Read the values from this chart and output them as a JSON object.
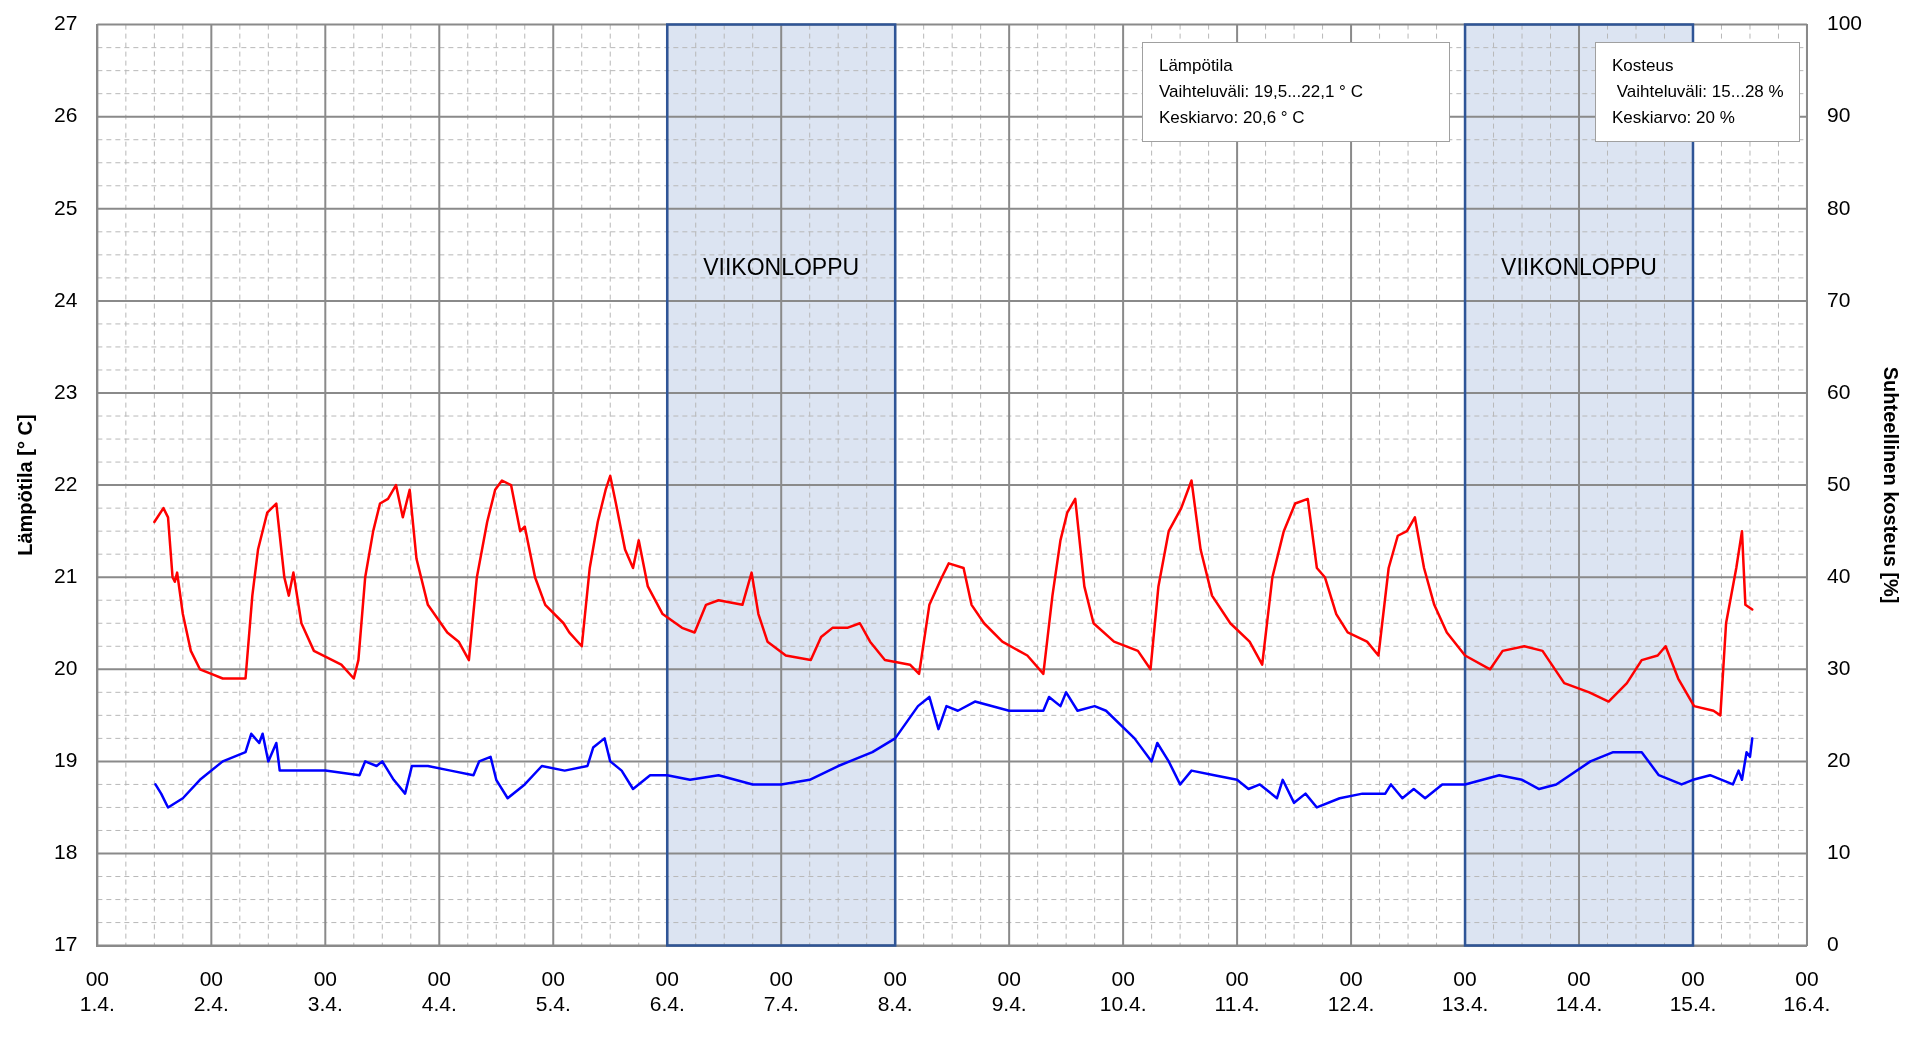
{
  "chart_data": {
    "type": "line",
    "ylabel": "Lämpötila [° C]",
    "y2label": "Suhteellinen kosteus [%]",
    "xlim": [
      "--04-01",
      "--04-16"
    ],
    "xticks": [
      {
        "value": "--04-01",
        "label": "00\n1.4."
      },
      {
        "value": "--04-02",
        "label": "00\n2.4."
      },
      {
        "value": "--04-03",
        "label": "00\n3.4."
      },
      {
        "value": "--04-04",
        "label": "00\n4.4."
      },
      {
        "value": "--04-05",
        "label": "00\n5.4."
      },
      {
        "value": "--04-06",
        "label": "00\n6.4."
      },
      {
        "value": "--04-07",
        "label": "00\n7.4."
      },
      {
        "value": "--04-08",
        "label": "00\n8.4."
      },
      {
        "value": "--04-09",
        "label": "00\n9.4."
      },
      {
        "value": "--04-10",
        "label": "00\n10.4."
      },
      {
        "value": "--04-11",
        "label": "00\n11.4."
      },
      {
        "value": "--04-12",
        "label": "00\n12.4."
      },
      {
        "value": "--04-13",
        "label": "00\n13.4."
      },
      {
        "value": "--04-14",
        "label": "00\n14.4."
      },
      {
        "value": "--04-15",
        "label": "00\n15.4."
      },
      {
        "value": "--04-16",
        "label": "00\n16.4."
      }
    ],
    "ylim": [
      17,
      27
    ],
    "yticks": [
      17,
      18,
      19,
      20,
      21,
      22,
      23,
      24,
      25,
      26,
      27
    ],
    "y2lim": [
      0,
      100
    ],
    "y2ticks": [
      0,
      10,
      20,
      30,
      40,
      50,
      60,
      70,
      80,
      90,
      100
    ],
    "grid": true,
    "marker": "none",
    "line_style": "solid",
    "series": [
      {
        "color": "#ff0000",
        "x": [
          "--04-01T12:00",
          "--04-01T13:55",
          "--04-01T14:53",
          "--04-01T15:50",
          "--04-01T16:19",
          "--04-01T16:48",
          "--04-01T18:00",
          "--04-01T19:41",
          "--04-01T21:36",
          "--04-02T00:00",
          "--04-02T02:24",
          "--04-02T04:48",
          "--04-02T07:12",
          "--04-02T08:38",
          "--04-02T09:50",
          "--04-02T11:46",
          "--04-02T12:43",
          "--04-02T13:41",
          "--04-02T15:22",
          "--04-02T16:19",
          "--04-02T17:17",
          "--04-02T18:58",
          "--04-02T21:36",
          "--04-03T03:22",
          "--04-03T06:00",
          "--04-03T06:58",
          "--04-03T08:24",
          "--04-03T10:05",
          "--04-03T11:31",
          "--04-03T13:12",
          "--04-03T14:53",
          "--04-03T16:19",
          "--04-03T17:46",
          "--04-03T19:12",
          "--04-03T21:36",
          "--04-04T01:41",
          "--04-04T04:05",
          "--04-04T06:14",
          "--04-04T07:55",
          "--04-04T10:05",
          "--04-04T11:46",
          "--04-04T13:12",
          "--04-04T15:07",
          "--04-04T17:02",
          "--04-04T18:00",
          "--04-04T20:10",
          "--04-04T22:19",
          "--04-05T02:10",
          "--04-05T03:22",
          "--04-05T06:00",
          "--04-05T07:41",
          "--04-05T09:22",
          "--04-05T11:02",
          "--04-05T12:00",
          "--04-05T13:12",
          "--04-05T15:07",
          "--04-05T16:48",
          "--04-05T18:00",
          "--04-05T19:55",
          "--04-05T23:02",
          "--04-06T03:07",
          "--04-06T05:46",
          "--04-06T08:10",
          "--04-06T10:48",
          "--04-06T15:50",
          "--04-06T17:46",
          "--04-06T19:12",
          "--04-06T21:07",
          "--04-07T00:58",
          "--04-07T06:14",
          "--04-07T08:24",
          "--04-07T10:48",
          "--04-07T13:55",
          "--04-07T16:34",
          "--04-07T18:43",
          "--04-07T21:50",
          "--04-08T03:07",
          "--04-08T05:02",
          "--04-08T07:12",
          "--04-08T09:50",
          "--04-08T11:17",
          "--04-08T14:24",
          "--04-08T16:05",
          "--04-08T18:43",
          "--04-08T22:34",
          "--04-09T03:50",
          "--04-09T07:12",
          "--04-09T09:07",
          "--04-09T10:48",
          "--04-09T12:14",
          "--04-09T13:55",
          "--04-09T15:50",
          "--04-09T17:46",
          "--04-09T22:05",
          "--04-10T03:07",
          "--04-10T05:46",
          "--04-10T07:26",
          "--04-10T09:36",
          "--04-10T12:14",
          "--04-10T14:24",
          "--04-10T16:19",
          "--04-10T18:43",
          "--04-10T22:34",
          "--04-11T02:38",
          "--04-11T05:17",
          "--04-11T07:26",
          "--04-11T09:50",
          "--04-11T12:14",
          "--04-11T14:53",
          "--04-11T16:48",
          "--04-11T18:29",
          "--04-11T20:53",
          "--04-11T23:17",
          "--04-12T03:22",
          "--04-12T05:46",
          "--04-12T07:55",
          "--04-12T09:50",
          "--04-12T11:46",
          "--04-12T13:26",
          "--04-12T15:22",
          "--04-12T17:31",
          "--04-12T20:10",
          "--04-13T00:00",
          "--04-13T05:17",
          "--04-13T07:55",
          "--04-13T12:29",
          "--04-13T16:19",
          "--04-13T20:53",
          "--04-14T02:10",
          "--04-14T06:14",
          "--04-14T10:05",
          "--04-14T13:12",
          "--04-14T16:34",
          "--04-14T18:14",
          "--04-14T20:53",
          "--04-15T00:14",
          "--04-15T04:19",
          "--04-15T05:46",
          "--04-15T06:58",
          "--04-15T09:07",
          "--04-15T10:19",
          "--04-15T11:02",
          "--04-15T12:29"
        ],
        "values": [
          21.6,
          21.75,
          21.65,
          21.0,
          20.95,
          21.05,
          20.6,
          20.2,
          20.0,
          19.95,
          19.9,
          19.9,
          19.9,
          20.8,
          21.3,
          21.7,
          21.75,
          21.8,
          21.0,
          20.8,
          21.05,
          20.5,
          20.2,
          20.05,
          19.9,
          20.1,
          21.0,
          21.5,
          21.8,
          21.85,
          22.0,
          21.65,
          21.95,
          21.2,
          20.7,
          20.4,
          20.3,
          20.1,
          21.0,
          21.6,
          21.95,
          22.05,
          22.0,
          21.5,
          21.55,
          21.0,
          20.7,
          20.5,
          20.4,
          20.25,
          21.1,
          21.6,
          21.95,
          22.1,
          21.8,
          21.3,
          21.1,
          21.4,
          20.9,
          20.6,
          20.45,
          20.4,
          20.7,
          20.75,
          20.7,
          21.05,
          20.6,
          20.3,
          20.15,
          20.1,
          20.35,
          20.45,
          20.45,
          20.5,
          20.3,
          20.1,
          20.05,
          19.95,
          20.7,
          21.0,
          21.15,
          21.1,
          20.7,
          20.5,
          20.3,
          20.15,
          19.95,
          20.8,
          21.4,
          21.7,
          21.85,
          20.9,
          20.5,
          20.3,
          20.2,
          20.0,
          20.9,
          21.5,
          21.75,
          22.05,
          21.3,
          20.8,
          20.5,
          20.3,
          20.05,
          21.0,
          21.5,
          21.8,
          21.85,
          21.1,
          21.0,
          20.6,
          20.4,
          20.3,
          20.15,
          21.1,
          21.45,
          21.5,
          21.65,
          21.1,
          20.7,
          20.4,
          20.15,
          20.0,
          20.2,
          20.25,
          20.2,
          19.85,
          19.75,
          19.65,
          19.85,
          20.1,
          20.15,
          20.25,
          19.9,
          19.6,
          19.55,
          19.5,
          20.5,
          21.1,
          21.5,
          20.7,
          20.65
        ]
      },
      {
        "color": "#0000ff",
        "axis": "y2",
        "x": [
          "--04-01T12:14",
          "--04-01T13:26",
          "--04-01T14:53",
          "--04-01T18:00",
          "--04-01T21:36",
          "--04-02T02:24",
          "--04-02T07:12",
          "--04-02T08:24",
          "--04-02T10:05",
          "--04-02T10:48",
          "--04-02T12:00",
          "--04-02T13:41",
          "--04-02T14:24",
          "--04-02T19:12",
          "--04-03T00:00",
          "--04-03T07:12",
          "--04-03T08:24",
          "--04-03T10:48",
          "--04-03T12:00",
          "--04-03T14:24",
          "--04-03T16:48",
          "--04-03T18:14",
          "--04-03T21:36",
          "--04-04T02:24",
          "--04-04T07:12",
          "--04-04T08:24",
          "--04-04T10:48",
          "--04-04T12:00",
          "--04-04T14:24",
          "--04-04T18:00",
          "--04-04T21:36",
          "--04-05T02:24",
          "--04-05T07:12",
          "--04-05T08:24",
          "--04-05T10:48",
          "--04-05T12:00",
          "--04-05T14:24",
          "--04-05T16:48",
          "--04-05T20:24",
          "--04-06T00:00",
          "--04-06T04:48",
          "--04-06T10:48",
          "--04-06T18:00",
          "--04-07T00:00",
          "--04-07T06:00",
          "--04-07T12:00",
          "--04-07T19:12",
          "--04-08T00:00",
          "--04-08T04:48",
          "--04-08T07:12",
          "--04-08T09:07",
          "--04-08T10:48",
          "--04-08T13:12",
          "--04-08T16:48",
          "--04-09T00:00",
          "--04-09T07:12",
          "--04-09T08:24",
          "--04-09T10:48",
          "--04-09T12:00",
          "--04-09T14:24",
          "--04-09T18:00",
          "--04-09T20:24",
          "--04-10T02:24",
          "--04-10T06:00",
          "--04-10T07:12",
          "--04-10T09:36",
          "--04-10T12:00",
          "--04-10T14:24",
          "--04-10T19:12",
          "--04-11T00:00",
          "--04-11T02:24",
          "--04-11T04:48",
          "--04-11T08:24",
          "--04-11T09:36",
          "--04-11T12:00",
          "--04-11T14:24",
          "--04-11T16:48",
          "--04-11T21:36",
          "--04-12T02:24",
          "--04-12T07:12",
          "--04-12T08:24",
          "--04-12T10:48",
          "--04-12T13:12",
          "--04-12T15:36",
          "--04-12T19:12",
          "--04-13T00:00",
          "--04-13T07:12",
          "--04-13T12:00",
          "--04-13T15:36",
          "--04-13T19:12",
          "--04-14T02:24",
          "--04-14T07:12",
          "--04-14T13:12",
          "--04-14T16:48",
          "--04-14T21:36",
          "--04-15T00:00",
          "--04-15T03:36",
          "--04-15T08:24",
          "--04-15T09:36",
          "--04-15T10:19",
          "--04-15T11:17",
          "--04-15T12:00",
          "--04-15T12:29"
        ],
        "values": [
          17.5,
          16.5,
          15,
          16,
          18,
          20,
          21,
          23,
          22,
          23,
          20,
          22,
          19,
          19,
          19,
          18.5,
          20,
          19.5,
          20,
          18,
          16.5,
          19.5,
          19.5,
          19,
          18.5,
          20,
          20.5,
          18,
          16,
          17.5,
          19.5,
          19,
          19.5,
          21.5,
          22.5,
          20,
          19,
          17,
          18.5,
          18.5,
          18,
          18.5,
          17.5,
          17.5,
          18,
          19.5,
          21,
          22.5,
          26,
          27,
          23.5,
          26,
          25.5,
          26.5,
          25.5,
          25.5,
          27,
          26,
          27.5,
          25.5,
          26,
          25.5,
          22.5,
          20,
          22,
          20,
          17.5,
          19,
          18.5,
          18,
          17,
          17.5,
          16,
          18,
          15.5,
          16.5,
          15,
          16,
          16.5,
          16.5,
          17.5,
          16,
          17,
          16,
          17.5,
          17.5,
          18.5,
          18,
          17,
          17.5,
          20,
          21,
          21,
          18.5,
          17.5,
          18,
          18.5,
          17.5,
          19,
          18,
          21,
          20.5,
          22.5
        ]
      }
    ],
    "bands": [
      {
        "axis": "x",
        "from": "--04-06",
        "to": "--04-08",
        "label": "VIIKONLOPPU",
        "color": "#d6dff0"
      },
      {
        "axis": "x",
        "from": "--04-13",
        "to": "--04-15",
        "label": "VIIKONLOPPU",
        "color": "#d6dff0"
      }
    ],
    "annotations": [
      "Lämpötila\nVaihteluväli: 19,5...22,1 ° C\nKeskiarvo: 20,6 ° C",
      "Kosteus\n Vaihteluväli: 15...28 %\nKeskiarvo: 20 %"
    ]
  }
}
